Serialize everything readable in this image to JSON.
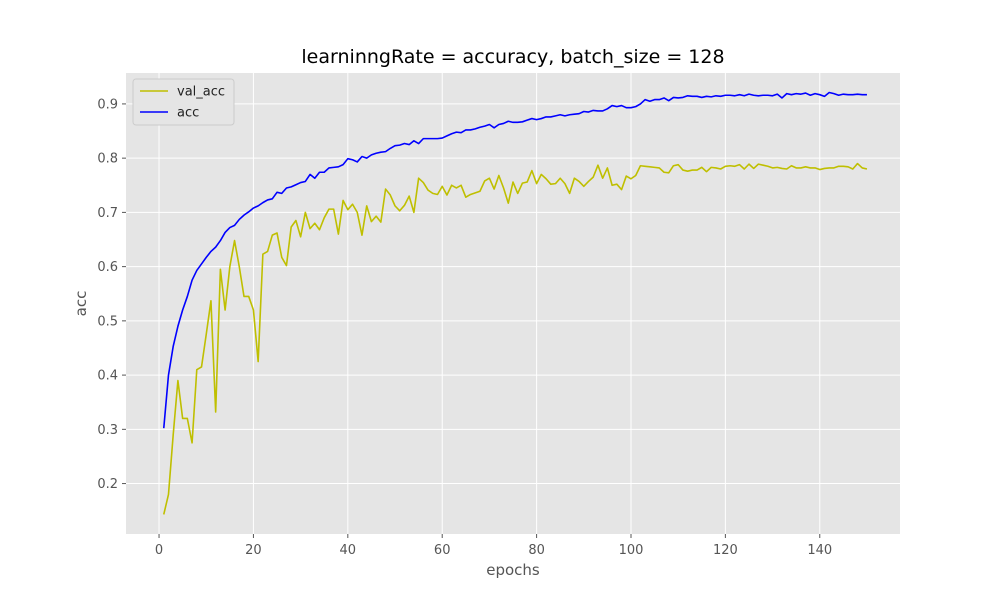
{
  "chart_data": {
    "type": "line",
    "title": "learninngRate = accuracy, batch_size = 128",
    "xlabel": "epochs",
    "ylabel": "acc",
    "xlim": [
      -7,
      157
    ],
    "ylim": [
      0.107,
      0.957
    ],
    "xticks": [
      0,
      20,
      40,
      60,
      80,
      100,
      120,
      140
    ],
    "yticks": [
      0.2,
      0.3,
      0.4,
      0.5,
      0.6,
      0.7,
      0.8,
      0.9
    ],
    "ytick_labels": [
      "0.2",
      "0.3",
      "0.4",
      "0.5",
      "0.6",
      "0.7",
      "0.8",
      "0.9"
    ],
    "grid": true,
    "style": "ggplot",
    "legend_position": "upper left",
    "x_start": 1,
    "series": [
      {
        "name": "val_acc",
        "color": "#bfbf00",
        "values": [
          0.143,
          0.18,
          0.29,
          0.39,
          0.32,
          0.32,
          0.275,
          0.41,
          0.415,
          0.475,
          0.537,
          0.332,
          0.595,
          0.52,
          0.6,
          0.648,
          0.6,
          0.545,
          0.545,
          0.52,
          0.425,
          0.623,
          0.628,
          0.658,
          0.662,
          0.617,
          0.602,
          0.673,
          0.685,
          0.655,
          0.7,
          0.67,
          0.68,
          0.668,
          0.69,
          0.706,
          0.706,
          0.66,
          0.722,
          0.705,
          0.715,
          0.7,
          0.658,
          0.712,
          0.683,
          0.693,
          0.682,
          0.743,
          0.732,
          0.712,
          0.703,
          0.713,
          0.73,
          0.7,
          0.763,
          0.755,
          0.741,
          0.735,
          0.733,
          0.748,
          0.732,
          0.75,
          0.745,
          0.75,
          0.728,
          0.733,
          0.736,
          0.739,
          0.758,
          0.763,
          0.743,
          0.768,
          0.745,
          0.717,
          0.756,
          0.735,
          0.754,
          0.756,
          0.777,
          0.753,
          0.77,
          0.762,
          0.752,
          0.753,
          0.763,
          0.753,
          0.735,
          0.763,
          0.757,
          0.748,
          0.757,
          0.765,
          0.787,
          0.763,
          0.782,
          0.75,
          0.752,
          0.742,
          0.767,
          0.762,
          0.768,
          0.786,
          0.785,
          0.784,
          0.783,
          0.782,
          0.774,
          0.773,
          0.786,
          0.788,
          0.778,
          0.776,
          0.778,
          0.778,
          0.783,
          0.775,
          0.783,
          0.782,
          0.78,
          0.785,
          0.786,
          0.785,
          0.788,
          0.78,
          0.789,
          0.781,
          0.789,
          0.787,
          0.785,
          0.782,
          0.783,
          0.781,
          0.78,
          0.786,
          0.782,
          0.782,
          0.784,
          0.782,
          0.782,
          0.779,
          0.781,
          0.782,
          0.782,
          0.785,
          0.785,
          0.784,
          0.78,
          0.79,
          0.782,
          0.78
        ]
      },
      {
        "name": "acc",
        "color": "#0000ff",
        "values": [
          0.302,
          0.4,
          0.453,
          0.49,
          0.52,
          0.545,
          0.575,
          0.593,
          0.605,
          0.617,
          0.628,
          0.636,
          0.648,
          0.663,
          0.672,
          0.676,
          0.687,
          0.695,
          0.701,
          0.708,
          0.712,
          0.718,
          0.723,
          0.725,
          0.737,
          0.735,
          0.745,
          0.747,
          0.751,
          0.755,
          0.757,
          0.77,
          0.763,
          0.774,
          0.774,
          0.782,
          0.783,
          0.784,
          0.788,
          0.799,
          0.797,
          0.793,
          0.803,
          0.8,
          0.806,
          0.809,
          0.811,
          0.812,
          0.818,
          0.823,
          0.824,
          0.827,
          0.825,
          0.832,
          0.827,
          0.836,
          0.836,
          0.836,
          0.836,
          0.837,
          0.841,
          0.845,
          0.848,
          0.847,
          0.852,
          0.852,
          0.854,
          0.857,
          0.859,
          0.862,
          0.856,
          0.862,
          0.864,
          0.868,
          0.866,
          0.866,
          0.867,
          0.87,
          0.873,
          0.871,
          0.873,
          0.876,
          0.876,
          0.878,
          0.88,
          0.878,
          0.88,
          0.881,
          0.882,
          0.886,
          0.885,
          0.888,
          0.887,
          0.887,
          0.891,
          0.897,
          0.895,
          0.897,
          0.893,
          0.893,
          0.895,
          0.9,
          0.908,
          0.905,
          0.908,
          0.908,
          0.911,
          0.906,
          0.912,
          0.911,
          0.912,
          0.915,
          0.914,
          0.914,
          0.912,
          0.914,
          0.913,
          0.915,
          0.914,
          0.916,
          0.916,
          0.915,
          0.917,
          0.915,
          0.918,
          0.916,
          0.915,
          0.916,
          0.916,
          0.915,
          0.918,
          0.911,
          0.919,
          0.917,
          0.919,
          0.918,
          0.92,
          0.916,
          0.919,
          0.917,
          0.914,
          0.921,
          0.919,
          0.916,
          0.918,
          0.917,
          0.917,
          0.918,
          0.917,
          0.917
        ]
      }
    ]
  }
}
